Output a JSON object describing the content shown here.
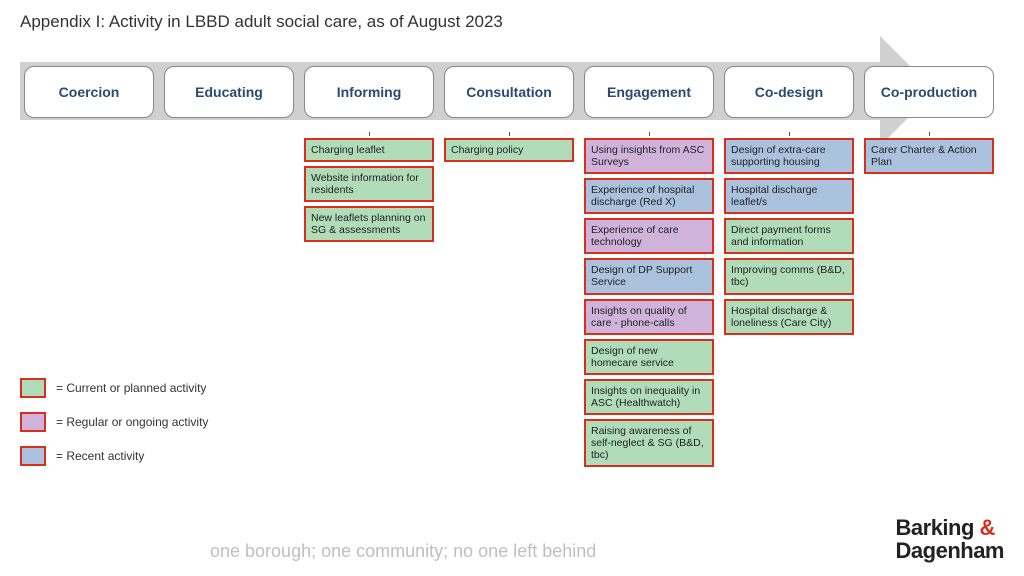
{
  "title": "Appendix I: Activity in LBBD adult social care, as of August 2023",
  "arrow_bg": "#d0d0d0",
  "stage_text_color": "#2b4a6f",
  "stages": [
    {
      "label": "Coercion"
    },
    {
      "label": "Educating"
    },
    {
      "label": "Informing"
    },
    {
      "label": "Consultation"
    },
    {
      "label": "Engagement"
    },
    {
      "label": "Co-design"
    },
    {
      "label": "Co-production"
    }
  ],
  "colors": {
    "current": {
      "fill": "#b0dcb9",
      "border": "#d92e1c"
    },
    "regular": {
      "fill": "#cfb3db",
      "border": "#d92e1c"
    },
    "recent": {
      "fill": "#abc2de",
      "border": "#d92e1c"
    }
  },
  "columns": [
    {
      "stage_index": 0,
      "items": []
    },
    {
      "stage_index": 1,
      "items": []
    },
    {
      "stage_index": 2,
      "items": [
        {
          "text": "Charging leaflet",
          "kind": "current"
        },
        {
          "text": "Website information for residents",
          "kind": "current"
        },
        {
          "text": "New leaflets planning on SG & assessments",
          "kind": "current"
        }
      ]
    },
    {
      "stage_index": 3,
      "items": [
        {
          "text": "Charging policy",
          "kind": "current"
        }
      ]
    },
    {
      "stage_index": 4,
      "items": [
        {
          "text": "Using insights from ASC Surveys",
          "kind": "regular"
        },
        {
          "text": "Experience of hospital discharge (Red X)",
          "kind": "recent"
        },
        {
          "text": "Experience of care technology",
          "kind": "regular"
        },
        {
          "text": "Design of DP Support Service",
          "kind": "recent"
        },
        {
          "text": "Insights on quality of care - phone-calls",
          "kind": "regular"
        },
        {
          "text": "Design of new homecare service",
          "kind": "current"
        },
        {
          "text": "Insights on inequality in ASC (Healthwatch)",
          "kind": "current"
        },
        {
          "text": "Raising awareness of self-neglect & SG (B&D, tbc)",
          "kind": "current"
        }
      ]
    },
    {
      "stage_index": 5,
      "items": [
        {
          "text": "Design of extra-care supporting housing",
          "kind": "recent"
        },
        {
          "text": "Hospital discharge leaflet/s",
          "kind": "recent"
        },
        {
          "text": "Direct payment forms and information",
          "kind": "current"
        },
        {
          "text": "Improving comms (B&D, tbc)",
          "kind": "current"
        },
        {
          "text": "Hospital discharge & loneliness (Care City)",
          "kind": "current"
        }
      ]
    },
    {
      "stage_index": 6,
      "items": [
        {
          "text": "Carer Charter & Action Plan",
          "kind": "recent"
        }
      ]
    }
  ],
  "legend": [
    {
      "kind": "current",
      "label": "= Current or planned activity"
    },
    {
      "kind": "regular",
      "label": "= Regular or ongoing activity"
    },
    {
      "kind": "recent",
      "label": "= Recent activity"
    }
  ],
  "tagline": "one borough; one community; no one left behind",
  "logo": {
    "line1_a": "Barking ",
    "amp": "&",
    "line2": "Dagenham"
  }
}
